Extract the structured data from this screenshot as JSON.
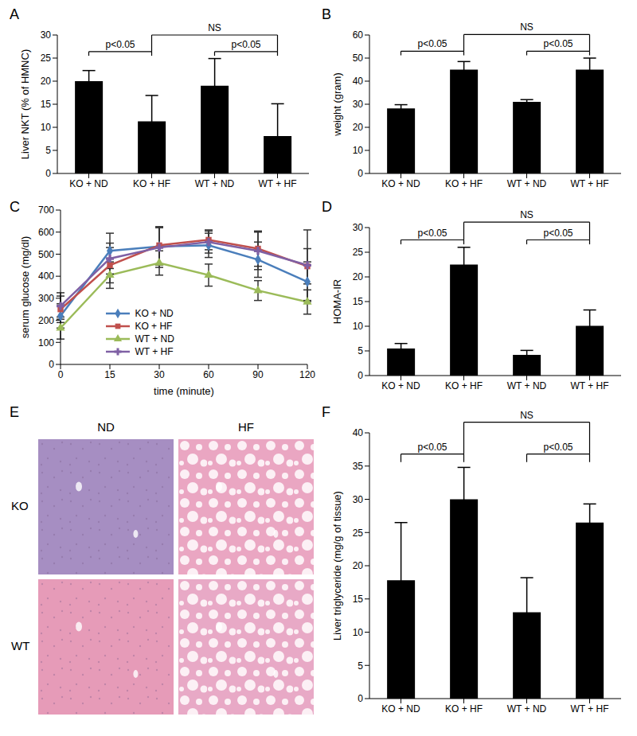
{
  "chart_data": [
    {
      "panel": "A",
      "type": "bar",
      "ylabel": "Liver NKT (% of HMNC)",
      "categories": [
        "KO + ND",
        "KO + HF",
        "WT + ND",
        "WT + HF"
      ],
      "values": [
        20,
        11.3,
        19,
        8.1
      ],
      "errors": [
        2.3,
        5.6,
        5.9,
        7
      ],
      "color": "#000000",
      "ylim": [
        0,
        30
      ],
      "yticks": [
        0,
        5,
        10,
        15,
        20,
        25,
        30
      ],
      "annotations": [
        {
          "from": "KO + ND",
          "to": "KO + HF",
          "text": "p<0.05"
        },
        {
          "from": "WT + ND",
          "to": "WT + HF",
          "text": "p<0.05"
        },
        {
          "from": "KO + HF",
          "to": "WT + HF",
          "text": "NS"
        }
      ]
    },
    {
      "panel": "B",
      "type": "bar",
      "ylabel": "weight (gram)",
      "categories": [
        "KO + ND",
        "KO + HF",
        "WT + ND",
        "WT + HF"
      ],
      "values": [
        28.2,
        45,
        31,
        45
      ],
      "errors": [
        1.6,
        3.5,
        1,
        5
      ],
      "color": "#000000",
      "ylim": [
        0,
        60
      ],
      "yticks": [
        0,
        10,
        20,
        30,
        40,
        50,
        60
      ],
      "annotations": [
        {
          "from": "KO + ND",
          "to": "KO + HF",
          "text": "p<0.05"
        },
        {
          "from": "WT + ND",
          "to": "WT + HF",
          "text": "p<0.05"
        },
        {
          "from": "KO + HF",
          "to": "WT + HF",
          "text": "NS"
        }
      ]
    },
    {
      "panel": "C",
      "type": "line",
      "xlabel": "time (minute)",
      "ylabel": "serum glucose (mg/dl)",
      "categories": [
        "0",
        "15",
        "30",
        "60",
        "90",
        "120"
      ],
      "ylim": [
        0,
        700
      ],
      "yticks": [
        0,
        100,
        200,
        300,
        400,
        500,
        600,
        700
      ],
      "legend": "lower center",
      "series": [
        {
          "name": "KO + ND",
          "color": "#4a7ebb",
          "marker": "diamond",
          "values": [
            220,
            515,
            535,
            540,
            475,
            375
          ],
          "errors": [
            55,
            80,
            85,
            55,
            80,
            90
          ]
        },
        {
          "name": "KO + HF",
          "color": "#c0504d",
          "marker": "square",
          "values": [
            250,
            450,
            540,
            565,
            525,
            445
          ],
          "errors": [
            60,
            80,
            85,
            45,
            80,
            80
          ]
        },
        {
          "name": "WT + ND",
          "color": "#9bbb59",
          "marker": "triangle",
          "values": [
            165,
            405,
            460,
            405,
            335,
            283
          ],
          "errors": [
            50,
            60,
            55,
            50,
            45,
            55
          ]
        },
        {
          "name": "WT + HF",
          "color": "#7f60a4",
          "marker": "cross",
          "values": [
            265,
            480,
            530,
            555,
            515,
            450
          ],
          "errors": [
            60,
            70,
            90,
            50,
            85,
            160
          ]
        }
      ]
    },
    {
      "panel": "D",
      "type": "bar",
      "ylabel": "HOMA-IR",
      "categories": [
        "KO + ND",
        "KO + HF",
        "WT + ND",
        "WT + HF"
      ],
      "values": [
        5.5,
        22.5,
        4.2,
        10.1
      ],
      "errors": [
        1,
        3.5,
        0.9,
        3.2
      ],
      "color": "#000000",
      "ylim": [
        0,
        30
      ],
      "yticks": [
        0,
        5,
        10,
        15,
        20,
        25,
        30
      ],
      "annotations": [
        {
          "from": "KO + ND",
          "to": "KO + HF",
          "text": "p<0.05"
        },
        {
          "from": "WT + ND",
          "to": "WT + HF",
          "text": "p<0.05"
        },
        {
          "from": "KO + HF",
          "to": "WT + HF",
          "text": "NS"
        }
      ]
    },
    {
      "panel": "E",
      "type": "image_grid",
      "columns": [
        "ND",
        "HF"
      ],
      "rows": [
        "KO",
        "WT"
      ]
    },
    {
      "panel": "F",
      "type": "bar",
      "ylabel": "Liver triglyceride (mg/g of tissue)",
      "categories": [
        "KO + ND",
        "KO + HF",
        "WT + ND",
        "WT + HF"
      ],
      "values": [
        17.8,
        30,
        13,
        26.5
      ],
      "errors": [
        8.7,
        4.8,
        5.2,
        2.8
      ],
      "color": "#000000",
      "ylim": [
        0,
        40
      ],
      "yticks": [
        0,
        5,
        10,
        15,
        20,
        25,
        30,
        35,
        40
      ],
      "annotations": [
        {
          "from": "KO + ND",
          "to": "KO + HF",
          "text": "p<0.05"
        },
        {
          "from": "WT + ND",
          "to": "WT + HF",
          "text": "p<0.05"
        },
        {
          "from": "KO + HF",
          "to": "WT + HF",
          "text": "NS"
        }
      ]
    }
  ]
}
